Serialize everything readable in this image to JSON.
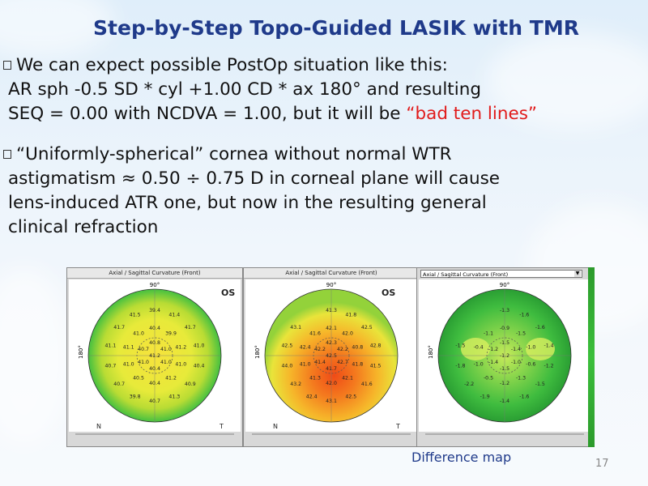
{
  "title": "Step-by-Step Topo-Guided LASIK with TMR",
  "bullets": [
    {
      "lines": [
        "We can expect possible PostOp situation like this:",
        "AR sph -0.5 SD * cyl +1.00 CD * ax 180° and resulting"
      ],
      "last_line_prefix": "SEQ = 0.00 with NCDVA = 1.00, but it will be ",
      "last_line_highlight": "“bad ten lines”"
    },
    {
      "lines": [
        "“Uniformly-spherical” cornea without normal WTR",
        "astigmatism  ≈ 0.50 ÷ 0.75 D in corneal plane will cause",
        "lens-induced ATR one, but now in the resulting general",
        "clinical refraction"
      ]
    }
  ],
  "maps": [
    {
      "header": "Axial / Sagittal Curvature (Front)",
      "eye": "OS",
      "top_deg": "90°",
      "left_deg": "180°",
      "bottom_left": "N",
      "bottom_right": "T",
      "values": [
        "41.2",
        "40.8",
        "41.0",
        "41.0",
        "40.4",
        "41.0",
        "40.7",
        "40.4",
        "39.9",
        "41.2",
        "41.0",
        "41.2",
        "40.4",
        "40.5",
        "41.0",
        "41.1",
        "41.0",
        "39.4",
        "41.4",
        "41.7",
        "41.0",
        "40.4",
        "40.9",
        "41.3",
        "40.7",
        "39.8",
        "40.7",
        "40.7",
        "41.1",
        "41.7",
        "41.5"
      ]
    },
    {
      "header": "Axial / Sagittal Curvature (Front)",
      "eye": "OS",
      "top_deg": "90°",
      "left_deg": "180°",
      "bottom_left": "N",
      "bottom_right": "T",
      "values": [
        "42.5",
        "42.3",
        "42.2",
        "42.7",
        "41.7",
        "41.4",
        "42.2",
        "42.1",
        "42.0",
        "40.8",
        "41.8",
        "42.1",
        "42.0",
        "41.3",
        "41.0",
        "42.4",
        "41.6",
        "41.3",
        "41.8",
        "42.5",
        "42.8",
        "41.5",
        "41.6",
        "42.5",
        "43.1",
        "42.4",
        "43.2",
        "44.0",
        "42.5",
        "43.1"
      ]
    },
    {
      "header": "Axial / Sagittal Curvature (Front)",
      "top_deg": "90°",
      "left_deg": "180°",
      "values": [
        "-1.2",
        "-1.5",
        "-1.4",
        "-1.0",
        "-1.5",
        "-1.4",
        "-1.2",
        "-0.9",
        "-1.5",
        "-1.0",
        "-0.6",
        "-1.3",
        "-1.2",
        "-0.5",
        "-1.0",
        "-0.4",
        "-1.1",
        "-1.3",
        "-1.6",
        "-1.6",
        "-1.4",
        "-1.2",
        "-1.5",
        "-1.6",
        "-1.4",
        "-1.9",
        "-2.2",
        "-1.8",
        "-1.5"
      ]
    }
  ],
  "caption": "Difference map",
  "page_number": "17"
}
